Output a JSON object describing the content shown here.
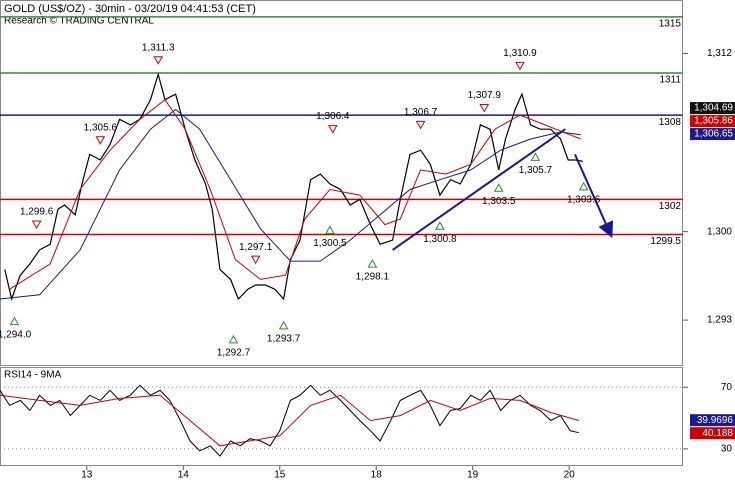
{
  "chart_data": [
    {
      "type": "line",
      "title": "GOLD (US$/OZ) - 30min - 03/20/19 04:41:53 (CET)",
      "subtitle": "Research © TRADING CENTRAL",
      "xlim": [
        0.1,
        7.18
      ],
      "xticks": [
        {
          "value": 1,
          "label": "13"
        },
        {
          "value": 2,
          "label": "14"
        },
        {
          "value": 3,
          "label": "15"
        },
        {
          "value": 4,
          "label": "18"
        },
        {
          "value": 5,
          "label": "19"
        },
        {
          "value": 6,
          "label": "20"
        }
      ],
      "ylim": [
        1290.2,
        1316.2
      ],
      "yticks": [
        {
          "value": 1312.4,
          "label": "1,312"
        },
        {
          "value": 1299.7,
          "label": "1,300"
        },
        {
          "value": 1293.4,
          "label": "1,293"
        }
      ],
      "series": [
        {
          "color": "#000000",
          "width": 1.2,
          "x": [
            0.15,
            0.22,
            0.31,
            0.41,
            0.51,
            0.62,
            0.7,
            0.77,
            0.88,
            0.95,
            1.03,
            1.14,
            1.24,
            1.34,
            1.45,
            1.55,
            1.66,
            1.74,
            1.81,
            1.92,
            2.02,
            2.12,
            2.23,
            2.3,
            2.38,
            2.49,
            2.57,
            2.67,
            2.75,
            2.85,
            2.95,
            3.04,
            3.11,
            3.21,
            3.32,
            3.42,
            3.52,
            3.63,
            3.73,
            3.83,
            3.94,
            4.04,
            4.17,
            4.25,
            4.35,
            4.46,
            4.56,
            4.66,
            4.77,
            4.87,
            4.98,
            5.08,
            5.18,
            5.27,
            5.34,
            5.44,
            5.51,
            5.6,
            5.7,
            5.81,
            5.91,
            5.99,
            6.06,
            6.14
          ],
          "values": [
            1297.0,
            1294.9,
            1296.6,
            1297.4,
            1298.4,
            1298.8,
            1301.3,
            1301.6,
            1300.9,
            1303.1,
            1305.2,
            1304.8,
            1305.9,
            1307.7,
            1307.3,
            1307.7,
            1309.1,
            1310.9,
            1309.1,
            1309.5,
            1307.0,
            1304.8,
            1303.1,
            1301.3,
            1297.0,
            1296.3,
            1294.9,
            1295.6,
            1295.9,
            1295.9,
            1295.6,
            1294.9,
            1297.7,
            1299.1,
            1303.4,
            1303.8,
            1303.1,
            1302.7,
            1301.6,
            1302.0,
            1300.2,
            1298.8,
            1299.1,
            1302.0,
            1305.2,
            1305.5,
            1304.5,
            1302.3,
            1303.4,
            1303.1,
            1304.5,
            1307.3,
            1307.0,
            1304.1,
            1306.3,
            1308.4,
            1309.5,
            1307.3,
            1307.0,
            1307.0,
            1306.3,
            1304.8,
            1304.8,
            1304.7
          ]
        },
        {
          "color": "#cc0000",
          "width": 1,
          "x": [
            0.2,
            0.62,
            0.93,
            1.24,
            1.55,
            1.81,
            2.02,
            2.28,
            2.54,
            2.8,
            3.06,
            3.26,
            3.52,
            3.83,
            4.09,
            4.25,
            4.46,
            4.72,
            4.98,
            5.23,
            5.49,
            5.75,
            6.01,
            6.12
          ],
          "values": [
            1295.6,
            1297.4,
            1302.7,
            1305.5,
            1307.7,
            1309.1,
            1307.0,
            1302.7,
            1297.7,
            1296.3,
            1296.6,
            1300.6,
            1302.7,
            1302.3,
            1300.2,
            1300.6,
            1304.1,
            1303.8,
            1304.5,
            1307.0,
            1308.0,
            1307.3,
            1306.6,
            1306.3
          ]
        },
        {
          "color": "#1a1a8c",
          "width": 1,
          "x": [
            0.1,
            0.51,
            0.93,
            1.34,
            1.66,
            1.92,
            2.17,
            2.49,
            2.8,
            3.11,
            3.42,
            3.73,
            4.04,
            4.35,
            4.66,
            4.98,
            5.29,
            5.6,
            5.91,
            6.12
          ],
          "values": [
            1294.9,
            1295.2,
            1298.4,
            1304.1,
            1307.0,
            1308.4,
            1307.0,
            1303.4,
            1299.9,
            1297.6,
            1297.6,
            1299.1,
            1300.9,
            1302.7,
            1303.4,
            1304.1,
            1305.5,
            1306.3,
            1306.8,
            1306.6
          ]
        }
      ],
      "levels": [
        {
          "value": 1315,
          "label": "1315",
          "color": "#2e8b2e"
        },
        {
          "value": 1311,
          "label": "1311",
          "color": "#2e8b2e"
        },
        {
          "value": 1308,
          "label": "1308",
          "color": "#1a1a8c"
        },
        {
          "value": 1302,
          "label": "1302",
          "color": "#cc0000"
        },
        {
          "value": 1299.5,
          "label": "1299.5",
          "color": "#cc0000"
        }
      ],
      "trendlines": [
        {
          "x": [
            4.17,
            5.96
          ],
          "values": [
            1298.4,
            1307.0
          ],
          "color": "#1a1a8c",
          "arrow": false
        },
        {
          "x": [
            6.06,
            6.43
          ],
          "values": [
            1305.2,
            1299.5
          ],
          "color": "#1a1a8c",
          "arrow": true
        }
      ],
      "highs": [
        {
          "x": 0.48,
          "value": 1299.6,
          "label": "1,299.6"
        },
        {
          "x": 1.14,
          "value": 1305.6,
          "label": "1,305.6"
        },
        {
          "x": 1.74,
          "value": 1311.3,
          "label": "1,311.3"
        },
        {
          "x": 2.75,
          "value": 1297.1,
          "label": "1,297.1"
        },
        {
          "x": 3.55,
          "value": 1306.4,
          "label": "1,306.4"
        },
        {
          "x": 4.46,
          "value": 1306.7,
          "label": "1,306.7"
        },
        {
          "x": 5.12,
          "value": 1307.9,
          "label": "1,307.9"
        },
        {
          "x": 5.49,
          "value": 1310.9,
          "label": "1,310.9"
        }
      ],
      "lows": [
        {
          "x": 0.25,
          "value": 1294.0,
          "label": "1,294.0"
        },
        {
          "x": 2.52,
          "value": 1292.7,
          "label": "1,292.7"
        },
        {
          "x": 3.04,
          "value": 1293.7,
          "label": "1,293.7"
        },
        {
          "x": 3.52,
          "value": 1300.5,
          "label": "1,300.5"
        },
        {
          "x": 3.96,
          "value": 1298.1,
          "label": "1,298.1"
        },
        {
          "x": 4.66,
          "value": 1300.8,
          "label": "1,300.8"
        },
        {
          "x": 5.27,
          "value": 1303.5,
          "label": "1,303.5"
        },
        {
          "x": 5.65,
          "value": 1305.7,
          "label": "1,305.7"
        },
        {
          "x": 6.15,
          "value": 1303.6,
          "label": "1,303.6"
        }
      ],
      "last_values": [
        {
          "value": 1306.65,
          "label": "1,306.65",
          "color": "#1a1a8c"
        },
        {
          "value": 1305.86,
          "label": "1,305.86",
          "color": "#cc0000"
        },
        {
          "value": 1304.69,
          "label": "1,304.69",
          "color": "#111111"
        }
      ]
    },
    {
      "type": "line",
      "title": "RSI14 - 9MA",
      "xlim": [
        0.1,
        7.18
      ],
      "ylim": [
        18.9,
        82.5
      ],
      "yticks": [
        70,
        30
      ],
      "grid": true,
      "series": [
        {
          "color": "#000000",
          "width": 1,
          "x": [
            0.1,
            0.2,
            0.31,
            0.41,
            0.51,
            0.62,
            0.72,
            0.83,
            0.93,
            1.03,
            1.14,
            1.24,
            1.34,
            1.45,
            1.55,
            1.66,
            1.76,
            1.86,
            1.97,
            2.07,
            2.17,
            2.28,
            2.38,
            2.49,
            2.59,
            2.69,
            2.8,
            2.9,
            3.0,
            3.11,
            3.21,
            3.32,
            3.42,
            3.52,
            3.63,
            3.73,
            3.83,
            3.94,
            4.04,
            4.15,
            4.25,
            4.35,
            4.46,
            4.56,
            4.66,
            4.77,
            4.87,
            4.98,
            5.08,
            5.18,
            5.29,
            5.39,
            5.49,
            5.6,
            5.7,
            5.81,
            5.91,
            6.01,
            6.1
          ],
          "values": [
            68.0,
            58.2,
            61.5,
            54.9,
            64.8,
            58.2,
            61.5,
            51.6,
            58.2,
            64.8,
            61.5,
            68.0,
            61.5,
            64.8,
            71.3,
            64.8,
            68.0,
            61.5,
            48.4,
            35.2,
            28.7,
            32.0,
            25.4,
            35.2,
            32.0,
            36.6,
            35.2,
            32.0,
            41.8,
            61.5,
            64.8,
            71.3,
            64.8,
            68.0,
            61.5,
            54.9,
            48.4,
            41.8,
            35.2,
            48.4,
            61.5,
            64.8,
            68.0,
            58.2,
            45.1,
            54.9,
            56.2,
            64.8,
            61.5,
            68.0,
            54.9,
            61.5,
            64.8,
            58.2,
            54.9,
            48.4,
            51.6,
            41.8,
            40.5
          ]
        },
        {
          "color": "#cc0000",
          "width": 1,
          "x": [
            0.1,
            0.51,
            0.93,
            1.34,
            1.76,
            2.07,
            2.38,
            2.69,
            3.0,
            3.32,
            3.63,
            3.94,
            4.25,
            4.56,
            4.87,
            5.18,
            5.49,
            5.81,
            6.1
          ],
          "values": [
            64.8,
            61.5,
            58.2,
            62.8,
            64.8,
            48.4,
            32.0,
            35.2,
            38.5,
            58.2,
            64.8,
            48.4,
            51.6,
            61.5,
            54.9,
            62.8,
            61.5,
            53.6,
            48.4
          ]
        }
      ],
      "last_values": [
        {
          "value": 40.188,
          "label": "40.188",
          "color": "#cc0000"
        },
        {
          "value": 39.9696,
          "label": "39.9696",
          "color": "#1a1a8c"
        }
      ]
    }
  ]
}
